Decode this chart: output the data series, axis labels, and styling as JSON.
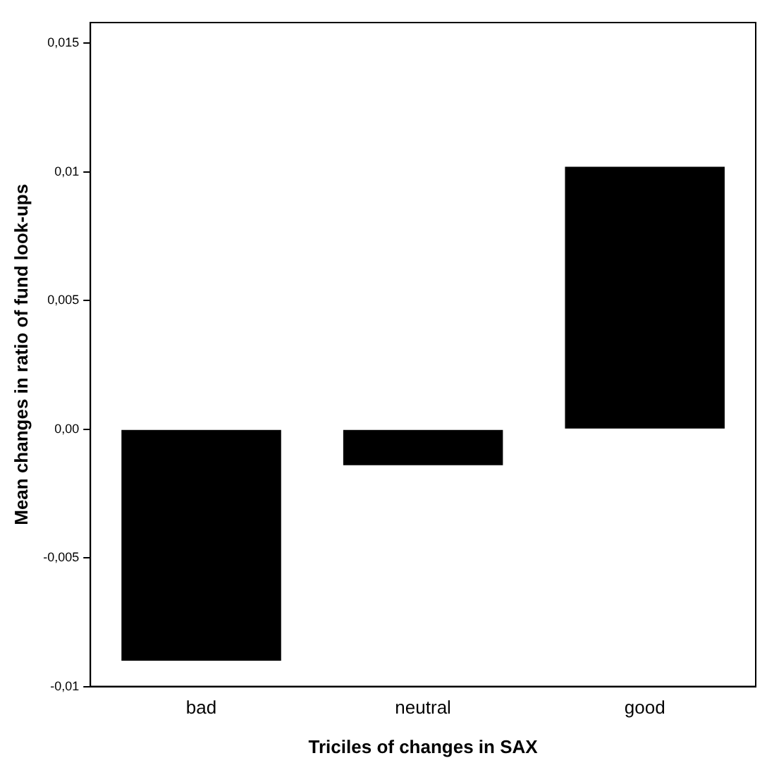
{
  "chart_data": {
    "type": "bar",
    "xlabel": "Triciles of changes in SAX",
    "ylabel": "Mean changes in ratio of fund look-ups",
    "categories": [
      "bad",
      "neutral",
      "good"
    ],
    "values": [
      -0.009,
      -0.0014,
      0.0102
    ],
    "color": "#000000",
    "ylim": [
      -0.01,
      0.0158
    ],
    "yticks": [
      {
        "value": -0.01,
        "label": "-0,01"
      },
      {
        "value": -0.005,
        "label": "-0,005"
      },
      {
        "value": 0,
        "label": "0,00"
      },
      {
        "value": 0.005,
        "label": "0,005"
      },
      {
        "value": 0.01,
        "label": "0,01"
      },
      {
        "value": 0.015,
        "label": "0,015"
      }
    ],
    "grid": false,
    "legend": false
  }
}
